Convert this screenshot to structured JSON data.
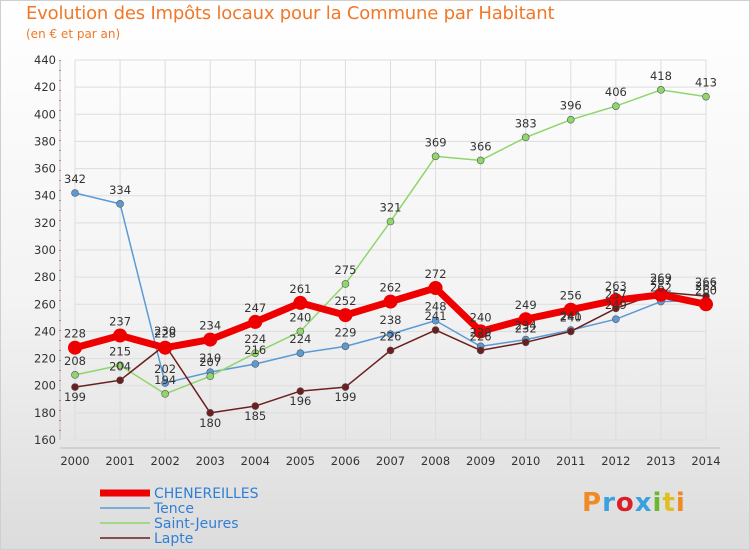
{
  "title": "Evolution des Impôts locaux pour la Commune par Habitant",
  "subtitle": "(en € et par an)",
  "logo": {
    "text": "Proxiti",
    "colors": [
      "#f08a24",
      "#3aa0e0",
      "#d8202a",
      "#3aa0e0",
      "#6cb82c",
      "#e0c020",
      "#f08a24"
    ]
  },
  "chart_data": {
    "type": "line",
    "x": [
      2000,
      2001,
      2002,
      2003,
      2004,
      2005,
      2006,
      2007,
      2008,
      2009,
      2010,
      2011,
      2012,
      2013,
      2014
    ],
    "xticks": [
      "2000",
      "2001",
      "2002",
      "2003",
      "2004",
      "2005",
      "2006",
      "2007",
      "2008",
      "2009",
      "2010",
      "2011",
      "2012",
      "2013",
      "2014"
    ],
    "ylim": [
      160,
      440
    ],
    "yticks": [
      160,
      180,
      200,
      220,
      240,
      260,
      280,
      300,
      320,
      340,
      360,
      380,
      400,
      420,
      440
    ],
    "grid": true,
    "legend_position": "bottom-left",
    "series": [
      {
        "name": "CHENEREILLES",
        "color": "#ee0000",
        "line_width": 7,
        "marker_radius": 7,
        "values": [
          228,
          237,
          228,
          234,
          247,
          261,
          252,
          262,
          272,
          240,
          249,
          256,
          263,
          267,
          260
        ],
        "labels": [
          "228",
          "237",
          "228",
          "234",
          "247",
          "261",
          "252",
          "262",
          "272",
          "240",
          "249",
          "256",
          "263",
          "267",
          "260"
        ]
      },
      {
        "name": "Tence",
        "color": "#5b9bd5",
        "line_width": 1.5,
        "marker_radius": 3.5,
        "values": [
          342,
          334,
          202,
          210,
          216,
          224,
          229,
          238,
          248,
          229,
          234,
          241,
          249,
          262,
          263
        ],
        "labels": [
          "342",
          "334",
          "202",
          "210",
          "216",
          "224",
          "229",
          "238",
          "248",
          "229",
          "234",
          "241",
          "249",
          "262",
          "263"
        ]
      },
      {
        "name": "Saint-Jeures",
        "color": "#8fd66b",
        "line_width": 1.5,
        "marker_radius": 3.5,
        "values": [
          208,
          215,
          194,
          207,
          224,
          240,
          275,
          321,
          369,
          366,
          383,
          396,
          406,
          418,
          413
        ],
        "labels": [
          "208",
          "215",
          "194",
          "207",
          "224",
          "240",
          "275",
          "321",
          "369",
          "366",
          "383",
          "396",
          "406",
          "418",
          "413"
        ]
      },
      {
        "name": "Lapte",
        "color": "#6b1f1f",
        "line_width": 1.5,
        "marker_radius": 3.5,
        "values": [
          199,
          204,
          230,
          180,
          185,
          196,
          199,
          226,
          241,
          226,
          232,
          240,
          257,
          269,
          266
        ],
        "labels": [
          "199",
          "204",
          "230",
          "180",
          "185",
          "196",
          "199",
          "226",
          "241",
          "226",
          "232",
          "240",
          "257",
          "269",
          "266"
        ]
      }
    ]
  }
}
